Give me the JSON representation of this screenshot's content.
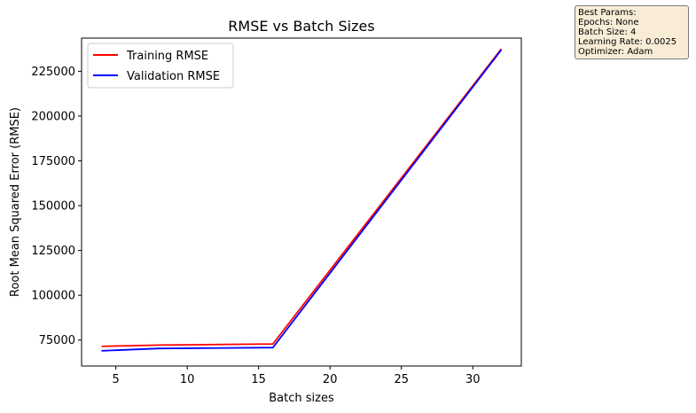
{
  "chart_data": {
    "type": "line",
    "title": "RMSE vs Batch Sizes",
    "xlabel": "Batch sizes",
    "ylabel": "Root Mean Squared Error (RMSE)",
    "xlim": [
      2.6,
      33.4
    ],
    "ylim": [
      60500,
      243500
    ],
    "xticks": [
      5,
      10,
      15,
      20,
      25,
      30
    ],
    "yticks": [
      75000,
      100000,
      125000,
      150000,
      175000,
      200000,
      225000
    ],
    "grid": false,
    "legend_position": "upper-left",
    "series": [
      {
        "name": "Training RMSE",
        "color": "#ff0000",
        "x": [
          4,
          8,
          16,
          32
        ],
        "y": [
          71500,
          72200,
          72800,
          237500
        ]
      },
      {
        "name": "Validation RMSE",
        "color": "#0000ff",
        "x": [
          4,
          8,
          16,
          32
        ],
        "y": [
          69000,
          70300,
          70800,
          237000
        ]
      }
    ]
  },
  "best_params": {
    "lines": [
      "Best Params:",
      "Epochs: None",
      "Batch Size: 4",
      "Learning Rate: 0.0025",
      "Optimizer: Adam"
    ]
  }
}
